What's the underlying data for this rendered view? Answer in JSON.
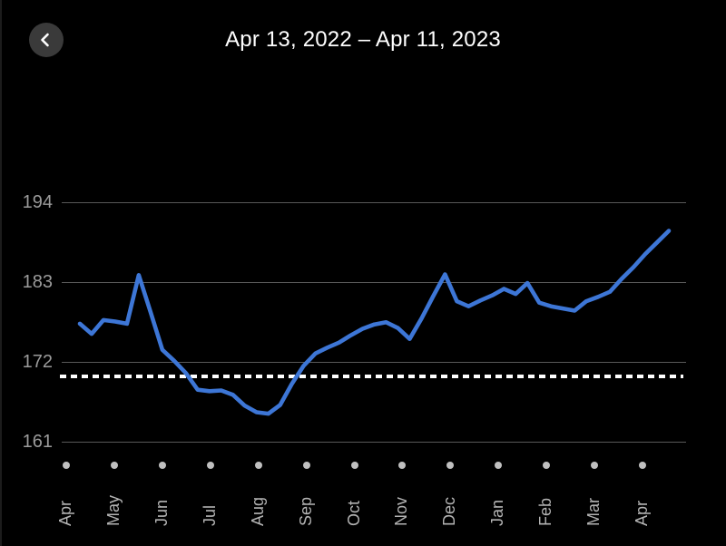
{
  "header": {
    "title": "Apr 13, 2022 – Apr 11, 2023",
    "back_icon": "chevron-left-icon"
  },
  "colors": {
    "background": "#000000",
    "back_button_bg": "#3a3a3a",
    "title_text": "#ffffff",
    "grid_line": "#595959",
    "y_tick_text": "#9b9b9b",
    "month_text": "#b3b3b3",
    "month_dot": "#c0c0c0",
    "goal_line": "#ffffff",
    "trend_line": "#3d76d6"
  },
  "chart_data": {
    "type": "line",
    "title": "Apr 13, 2022 – Apr 11, 2023",
    "x_start_label": "Apr 13, 2022",
    "x_end_label": "Apr 11, 2023",
    "x_tick_labels": [
      "Apr",
      "May",
      "Jun",
      "Jul",
      "Aug",
      "Sep",
      "Oct",
      "Nov",
      "Dec",
      "Jan",
      "Feb",
      "Mar",
      "Apr"
    ],
    "y_ticks": [
      194,
      183,
      172,
      161
    ],
    "ylim": [
      158,
      197
    ],
    "grid": true,
    "legend": false,
    "goal_value": 170,
    "sampling": "weekly",
    "line_color": "#3d76d6",
    "values": [
      177.2,
      175.8,
      177.7,
      177.5,
      177.2,
      183.9,
      178.8,
      173.6,
      172.1,
      170.4,
      168.1,
      167.9,
      168.0,
      167.4,
      165.9,
      165.0,
      164.8,
      166.0,
      168.9,
      171.4,
      173.1,
      173.9,
      174.6,
      175.6,
      176.5,
      177.1,
      177.4,
      176.6,
      175.1,
      177.9,
      181.0,
      184.0,
      180.3,
      179.6,
      180.4,
      181.1,
      182.0,
      181.3,
      182.8,
      180.1,
      179.6,
      179.3,
      179.0,
      180.3,
      180.9,
      181.6,
      183.4,
      185.0,
      186.8,
      188.4,
      190.0
    ]
  }
}
